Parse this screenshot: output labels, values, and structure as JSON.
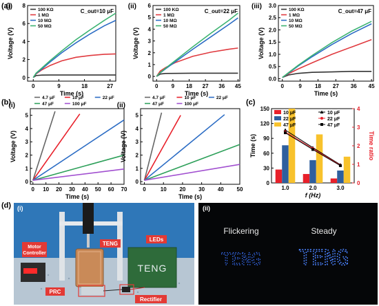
{
  "figure": {
    "label_a": "(a)",
    "label_b": "(b)",
    "label_c": "(c)",
    "label_d": "(d)"
  },
  "photo_i": {
    "label": "(i)",
    "motor_controller": [
      "Motor",
      "Controller"
    ],
    "teng": "TENG",
    "leds": "LEDs",
    "prc": "PRC",
    "rectifier": "Rectifier",
    "panel_text": "TENG",
    "colors": {
      "background": "#1f6aa8",
      "led_board": "#2e6b3a"
    }
  },
  "photo_ii": {
    "label": "(ii)",
    "flickering": "Flickering",
    "steady": "Steady",
    "left_text": "TENG",
    "right_text": "TENG",
    "colors": {
      "background": "#050608",
      "led": "#3a72ff"
    }
  },
  "chart_data": [
    {
      "id": "a-i",
      "type": "line",
      "panel_label": "(i)",
      "annotation": "C_out=10 μF",
      "xlabel": "Time (s)",
      "ylabel": "Voltage (V)",
      "xlim": [
        -2,
        29
      ],
      "ylim": [
        -0.4,
        8
      ],
      "xticks": [
        0,
        9,
        18,
        27
      ],
      "yticks": [
        0,
        2,
        4,
        6,
        8
      ],
      "legend_position": "top-left",
      "series": [
        {
          "name": "100 KΩ",
          "color": "#333333",
          "x": [
            0,
            1,
            3,
            6,
            10,
            15,
            20,
            25,
            29
          ],
          "y": [
            0,
            0.22,
            0.27,
            0.28,
            0.28,
            0.28,
            0.28,
            0.28,
            0.28
          ]
        },
        {
          "name": "1 MΩ",
          "color": "#e0393e",
          "x": [
            0,
            1,
            3,
            6,
            10,
            15,
            20,
            25,
            29
          ],
          "y": [
            0,
            0.4,
            0.85,
            1.35,
            1.85,
            2.25,
            2.45,
            2.58,
            2.62
          ]
        },
        {
          "name": "10 MΩ",
          "color": "#2b6cc4",
          "x": [
            0,
            1,
            3,
            6,
            10,
            15,
            20,
            25,
            29
          ],
          "y": [
            0,
            0.45,
            0.95,
            1.75,
            2.75,
            3.85,
            4.85,
            5.75,
            6.35
          ]
        },
        {
          "name": "50 MΩ",
          "color": "#3cb371",
          "x": [
            0,
            1,
            3,
            6,
            10,
            15,
            20,
            25,
            29
          ],
          "y": [
            0,
            0.5,
            1.05,
            1.9,
            2.95,
            4.2,
            5.3,
            6.35,
            7.15
          ]
        }
      ]
    },
    {
      "id": "a-ii",
      "type": "line",
      "panel_label": "(ii)",
      "annotation": "C_out=22 μF",
      "xlabel": "Time (s)",
      "ylabel": "Voltage (V)",
      "xlim": [
        -2,
        46
      ],
      "ylim": [
        -0.4,
        6
      ],
      "xticks": [
        0,
        9,
        18,
        27,
        36,
        45
      ],
      "yticks": [
        0,
        1,
        2,
        3,
        4,
        5,
        6
      ],
      "legend_position": "top-left",
      "series": [
        {
          "name": "100 KΩ",
          "color": "#333333",
          "x": [
            0,
            2,
            5,
            10,
            20,
            30,
            40,
            45
          ],
          "y": [
            0,
            0.2,
            0.25,
            0.26,
            0.27,
            0.27,
            0.27,
            0.27
          ]
        },
        {
          "name": "1 MΩ",
          "color": "#e0393e",
          "x": [
            0,
            2,
            5,
            10,
            20,
            30,
            40,
            45
          ],
          "y": [
            0,
            0.45,
            0.75,
            1.15,
            1.7,
            2.05,
            2.3,
            2.4
          ]
        },
        {
          "name": "10 MΩ",
          "color": "#2b6cc4",
          "x": [
            0,
            2,
            5,
            10,
            20,
            30,
            40,
            45
          ],
          "y": [
            0,
            0.3,
            0.65,
            1.2,
            2.3,
            3.35,
            4.4,
            4.95
          ]
        },
        {
          "name": "50 MΩ",
          "color": "#3cb371",
          "x": [
            0,
            2,
            5,
            10,
            20,
            30,
            40,
            45
          ],
          "y": [
            0,
            0.32,
            0.7,
            1.3,
            2.5,
            3.65,
            4.75,
            5.35
          ]
        }
      ]
    },
    {
      "id": "a-iii",
      "type": "line",
      "panel_label": "(iii)",
      "annotation": "C_out=47 μF",
      "xlabel": "Time (s)",
      "ylabel": "Voltage (V)",
      "xlim": [
        -2,
        46
      ],
      "ylim": [
        -0.1,
        3.0
      ],
      "xticks": [
        0,
        9,
        18,
        27,
        36,
        45
      ],
      "yticks": [
        0.0,
        0.5,
        1.0,
        1.5,
        2.0,
        2.5,
        3.0
      ],
      "legend_position": "top-left",
      "series": [
        {
          "name": "100 KΩ",
          "color": "#333333",
          "x": [
            0,
            3,
            8,
            15,
            25,
            35,
            45
          ],
          "y": [
            0.05,
            0.15,
            0.22,
            0.26,
            0.28,
            0.3,
            0.3
          ]
        },
        {
          "name": "1 MΩ",
          "color": "#e0393e",
          "x": [
            0,
            3,
            8,
            15,
            25,
            35,
            45
          ],
          "y": [
            0.05,
            0.2,
            0.4,
            0.65,
            1.0,
            1.3,
            1.6
          ]
        },
        {
          "name": "10 MΩ",
          "color": "#2b6cc4",
          "x": [
            0,
            3,
            8,
            15,
            25,
            35,
            45
          ],
          "y": [
            0.05,
            0.22,
            0.52,
            0.9,
            1.4,
            1.85,
            2.25
          ]
        },
        {
          "name": "50 MΩ",
          "color": "#3cb371",
          "x": [
            0,
            3,
            8,
            15,
            25,
            35,
            45
          ],
          "y": [
            0.05,
            0.24,
            0.55,
            0.95,
            1.48,
            1.95,
            2.35
          ]
        }
      ]
    },
    {
      "id": "b-i",
      "type": "line",
      "panel_label": "(i)",
      "xlabel": "Time (s)",
      "ylabel": "Voltage (V)",
      "xlim": [
        -2,
        70
      ],
      "ylim": [
        -0.2,
        5.5
      ],
      "xticks": [
        0,
        10,
        20,
        30,
        40,
        50,
        60,
        70
      ],
      "yticks": [
        0,
        1,
        2,
        3,
        4,
        5
      ],
      "legend_position": "top",
      "series": [
        {
          "name": "4.7 μF",
          "color": "#666666",
          "x": [
            0,
            17
          ],
          "y": [
            0.1,
            5.3
          ]
        },
        {
          "name": "10 μF",
          "color": "#e8202a",
          "x": [
            0,
            36
          ],
          "y": [
            0.1,
            5.1
          ]
        },
        {
          "name": "22 μF",
          "color": "#2b6cc4",
          "x": [
            0,
            70
          ],
          "y": [
            0.1,
            4.65
          ]
        },
        {
          "name": "47 μF",
          "color": "#2ea05a",
          "x": [
            0,
            70
          ],
          "y": [
            0.1,
            2.0
          ]
        },
        {
          "name": "100 μF",
          "color": "#a14fd0",
          "x": [
            0,
            70
          ],
          "y": [
            0.1,
            0.95
          ]
        }
      ]
    },
    {
      "id": "b-ii",
      "type": "line",
      "panel_label": "(ii)",
      "xlabel": "Time (s)",
      "ylabel": "Voltage (V)",
      "xlim": [
        -2,
        50
      ],
      "ylim": [
        -0.2,
        5.5
      ],
      "xticks": [
        0,
        10,
        20,
        30,
        40,
        50
      ],
      "yticks": [
        0,
        1,
        2,
        3,
        4,
        5
      ],
      "legend_position": "top",
      "series": [
        {
          "name": "4.7 μF",
          "color": "#666666",
          "x": [
            0,
            9
          ],
          "y": [
            0.1,
            5.2
          ]
        },
        {
          "name": "10 μF",
          "color": "#e8202a",
          "x": [
            0,
            19
          ],
          "y": [
            0.1,
            5.0
          ]
        },
        {
          "name": "22 μF",
          "color": "#2b6cc4",
          "x": [
            0,
            42
          ],
          "y": [
            0.1,
            5.05
          ]
        },
        {
          "name": "47 μF",
          "color": "#2ea05a",
          "x": [
            0,
            50
          ],
          "y": [
            0.1,
            2.8
          ]
        },
        {
          "name": "100 μF",
          "color": "#a14fd0",
          "x": [
            0,
            50
          ],
          "y": [
            0.1,
            1.3
          ]
        }
      ]
    },
    {
      "id": "c",
      "type": "bar",
      "xlabel": "f (Hz)",
      "ylabel": "Time (s)",
      "y2label": "Time ratio",
      "categories": [
        "1.0",
        "2.0",
        "3.0"
      ],
      "ylim": [
        0,
        150
      ],
      "yticks": [
        0,
        30,
        60,
        90,
        120,
        150
      ],
      "y2lim": [
        0,
        4
      ],
      "y2ticks": [
        0,
        1,
        2,
        3,
        4
      ],
      "legend_position": "top",
      "series": [
        {
          "name": "10 μF",
          "color": "#e8202a",
          "values": [
            27,
            18,
            9
          ]
        },
        {
          "name": "22 μF",
          "color": "#2e5f9e",
          "values": [
            76,
            46,
            25
          ]
        },
        {
          "name": "47 μF",
          "color": "#f8c22c",
          "values": [
            150,
            98,
            53
          ]
        }
      ],
      "line_series": [
        {
          "name": "10 μF",
          "marker": "triangle",
          "color": "#000000",
          "values": [
            2.85,
            1.9,
            0.98
          ]
        },
        {
          "name": "22 μF",
          "marker": "circle",
          "color": "#e8202a",
          "values": [
            2.75,
            1.85,
            0.95
          ]
        },
        {
          "name": "47 μF",
          "marker": "square",
          "color": "#000000",
          "values": [
            2.7,
            1.8,
            0.93
          ]
        }
      ]
    }
  ]
}
